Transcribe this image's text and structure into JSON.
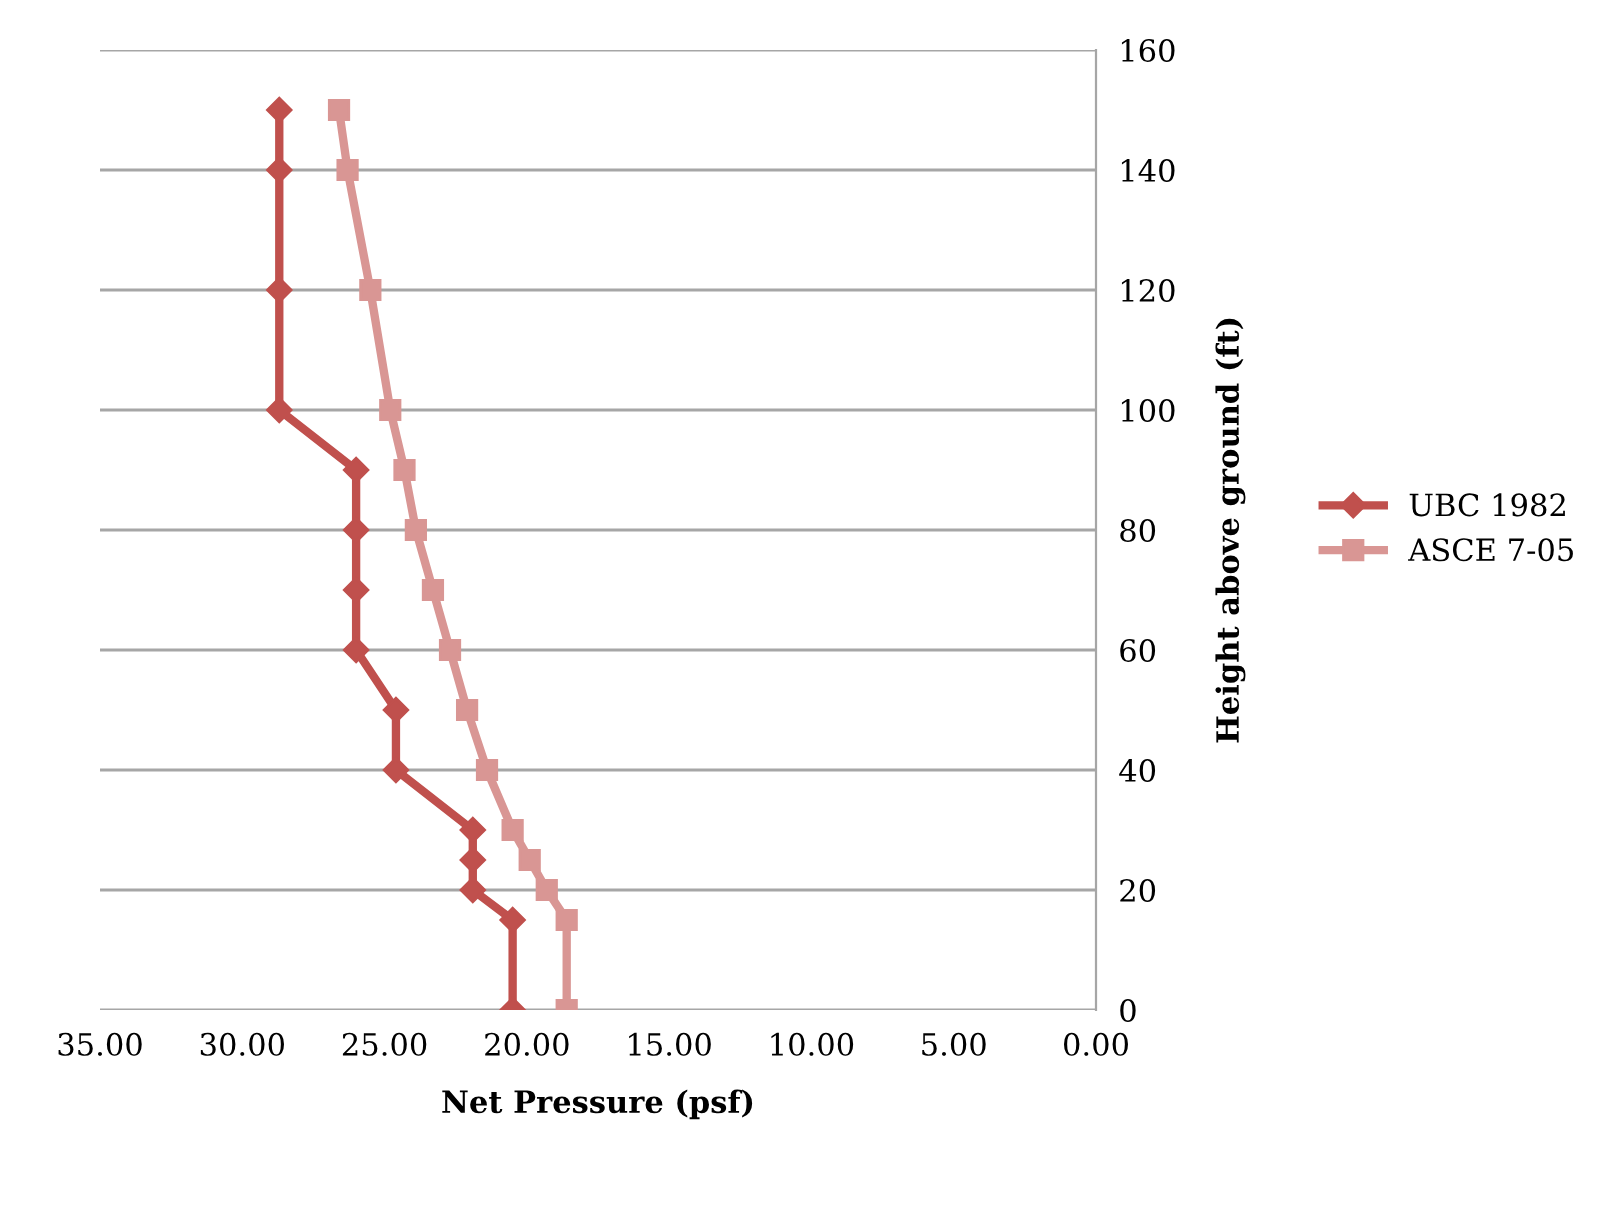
{
  "chart_data": {
    "type": "line",
    "xlabel": "Net Pressure (psf)",
    "ylabel": "Height above ground (ft)",
    "series": [
      {
        "name": "UBC 1982",
        "color": "#c0504d",
        "marker": "diamond",
        "x": [
          20.5,
          20.5,
          21.9,
          21.9,
          21.9,
          24.6,
          24.6,
          26.0,
          26.0,
          26.0,
          26.0,
          28.7,
          28.7,
          28.7,
          28.7
        ],
        "values": [
          0,
          15,
          20,
          25,
          30,
          40,
          50,
          60,
          70,
          80,
          90,
          100,
          120,
          140,
          150
        ]
      },
      {
        "name": "ASCE 7-05",
        "color": "#d99694",
        "marker": "square",
        "x": [
          18.6,
          18.6,
          19.3,
          19.9,
          20.5,
          21.4,
          22.1,
          22.7,
          23.3,
          23.9,
          24.3,
          24.8,
          25.5,
          26.3,
          26.6
        ],
        "values": [
          0,
          15,
          20,
          25,
          30,
          40,
          50,
          60,
          70,
          80,
          90,
          100,
          120,
          140,
          150
        ]
      }
    ],
    "xlim": [
      35,
      0
    ],
    "xticks": [
      {
        "value": 35,
        "label": "35.00"
      },
      {
        "value": 30,
        "label": "30.00"
      },
      {
        "value": 25,
        "label": "25.00"
      },
      {
        "value": 20,
        "label": "20.00"
      },
      {
        "value": 15,
        "label": "15.00"
      },
      {
        "value": 10,
        "label": "10.00"
      },
      {
        "value": 5,
        "label": "5.00"
      },
      {
        "value": 0,
        "label": "0.00"
      }
    ],
    "ylim": [
      0,
      160
    ],
    "yticks": [
      0,
      20,
      40,
      60,
      80,
      100,
      120,
      140,
      160
    ],
    "grid": "y",
    "legend": "right",
    "line_style": "solid"
  }
}
